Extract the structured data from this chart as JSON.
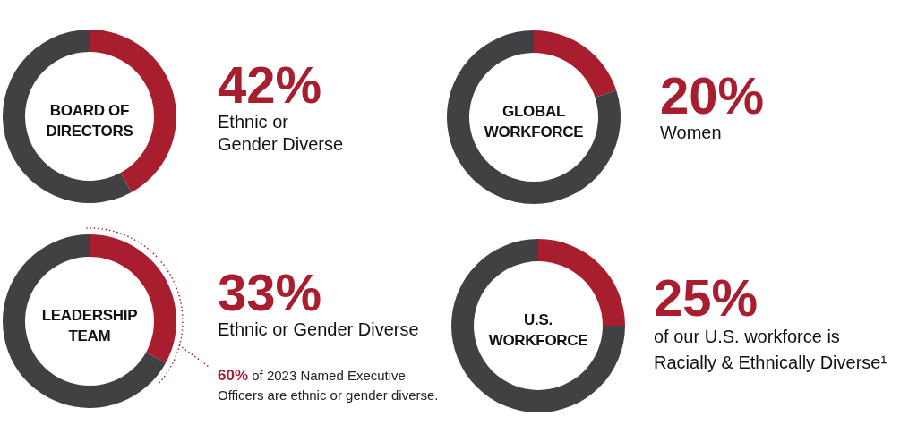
{
  "chart_data": [
    {
      "type": "donut",
      "title": "BOARD OF\nDIRECTORS",
      "categories": [
        "Ethnic or\nGender Diverse",
        null
      ],
      "values": [
        42,
        58
      ],
      "colors": [
        "#a91e2e",
        "#414042"
      ],
      "value_labels": [
        "42%",
        null
      ]
    },
    {
      "type": "donut",
      "title": "GLOBAL\nWORKFORCE",
      "categories": [
        "Women",
        null
      ],
      "values": [
        20,
        80
      ],
      "colors": [
        "#a91e2e",
        "#414042"
      ],
      "value_labels": [
        "20%",
        null
      ]
    },
    {
      "type": "donut",
      "title": "LEADERSHIP\nTEAM",
      "categories": [
        "Ethnic or Gender Diverse",
        null
      ],
      "values": [
        33,
        67
      ],
      "colors": [
        "#a91e2e",
        "#414042"
      ],
      "value_labels": [
        "33%",
        null
      ],
      "annotations": [
        "60% of 2023 Named Executive\nOfficers are ethnic or gender diverse."
      ]
    },
    {
      "type": "donut",
      "title": "U.S.\nWORKFORCE",
      "categories": [
        "of our U.S. workforce is\nRacially & Ethnically Diverse¹",
        null
      ],
      "values": [
        25,
        75
      ],
      "colors": [
        "#a91e2e",
        "#414042"
      ],
      "value_labels": [
        "25%",
        null
      ]
    }
  ]
}
